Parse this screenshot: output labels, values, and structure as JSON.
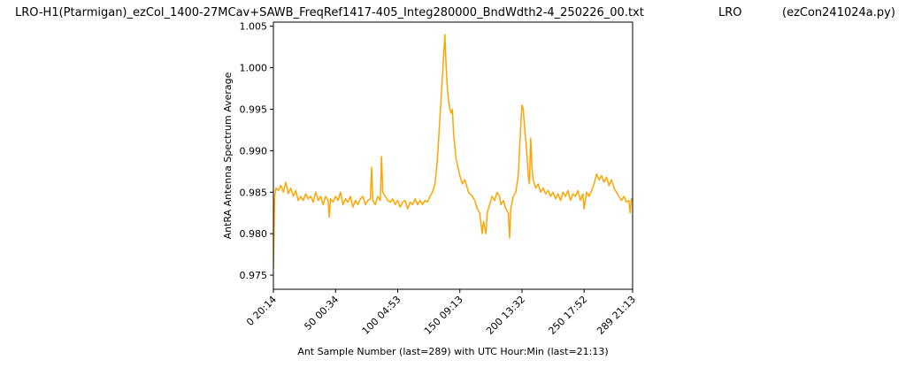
{
  "chart_data": {
    "type": "line",
    "title": "LRO-H1(Ptarmigan)_ezCol_1400-27MCav+SAWB_FreqRef1417-405_Integ280000_BndWdth2-4_250226_00.txt",
    "title_center": "LRO",
    "title_right": "(ezCon241024a.py)",
    "x_label": "Ant Sample Number (last=289) with UTC Hour:Min (last=21:13)",
    "y_label": "AntRA Antenna Spectrum Average",
    "color": "#ffa500",
    "xlim": [
      0,
      289
    ],
    "ylim": [
      0.9733,
      1.0055
    ],
    "xticks": [
      {
        "value": 0,
        "label": "0 20:14"
      },
      {
        "value": 50,
        "label": "50 00:34"
      },
      {
        "value": 100,
        "label": "100 04:53"
      },
      {
        "value": 150,
        "label": "150 09:13"
      },
      {
        "value": 200,
        "label": "200 13:32"
      },
      {
        "value": 250,
        "label": "250 17:52"
      },
      {
        "value": 289,
        "label": "289 21:13"
      }
    ],
    "yticks": [
      0.975,
      {
        "value": 0.98,
        "label": "0.980"
      },
      0.985,
      {
        "value": 0.99,
        "label": "0.990"
      },
      0.995,
      {
        "value": 1.0,
        "label": "1.000"
      },
      1.005
    ],
    "x": [
      0,
      1,
      2,
      4,
      6,
      8,
      10,
      12,
      14,
      16,
      18,
      20,
      22,
      24,
      26,
      28,
      30,
      32,
      34,
      36,
      38,
      40,
      42,
      44,
      45,
      46,
      48,
      50,
      52,
      54,
      56,
      58,
      60,
      62,
      64,
      66,
      68,
      70,
      72,
      74,
      76,
      78,
      79,
      80,
      82,
      84,
      86,
      87,
      88,
      90,
      92,
      94,
      96,
      98,
      100,
      102,
      104,
      106,
      108,
      110,
      112,
      114,
      116,
      118,
      120,
      122,
      124,
      126,
      128,
      130,
      132,
      134,
      136,
      138,
      139,
      140,
      141,
      142,
      143,
      144,
      145,
      147,
      150,
      152,
      154,
      157,
      160,
      162,
      164,
      166,
      168,
      169,
      171,
      172,
      174,
      176,
      178,
      180,
      182,
      183,
      185,
      187,
      189,
      190,
      191,
      193,
      195,
      197,
      199,
      200,
      201,
      202,
      204,
      205,
      206,
      207,
      208,
      209,
      211,
      213,
      215,
      217,
      219,
      221,
      223,
      225,
      227,
      229,
      231,
      233,
      235,
      237,
      239,
      241,
      243,
      245,
      247,
      249,
      250,
      252,
      254,
      256,
      258,
      260,
      262,
      264,
      266,
      268,
      270,
      272,
      274,
      276,
      278,
      280,
      282,
      284,
      286,
      287,
      288,
      289
    ],
    "values": [
      0.9758,
      0.9845,
      0.9855,
      0.9852,
      0.9858,
      0.985,
      0.9862,
      0.9848,
      0.9855,
      0.9845,
      0.9852,
      0.984,
      0.9845,
      0.984,
      0.9848,
      0.9842,
      0.9845,
      0.9838,
      0.985,
      0.984,
      0.9845,
      0.9835,
      0.9845,
      0.984,
      0.982,
      0.9842,
      0.9838,
      0.9845,
      0.984,
      0.985,
      0.9835,
      0.9842,
      0.9838,
      0.9845,
      0.9832,
      0.984,
      0.9835,
      0.9842,
      0.9845,
      0.9835,
      0.984,
      0.9842,
      0.988,
      0.984,
      0.9835,
      0.9845,
      0.984,
      0.9893,
      0.985,
      0.9845,
      0.984,
      0.9838,
      0.9842,
      0.9835,
      0.984,
      0.9832,
      0.9838,
      0.984,
      0.983,
      0.9838,
      0.9835,
      0.9842,
      0.9835,
      0.984,
      0.9835,
      0.984,
      0.9838,
      0.9845,
      0.985,
      0.986,
      0.989,
      0.994,
      0.999,
      1.004,
      1.0,
      0.9975,
      0.996,
      0.995,
      0.9945,
      0.995,
      0.992,
      0.989,
      0.987,
      0.986,
      0.9865,
      0.985,
      0.9845,
      0.984,
      0.983,
      0.9825,
      0.98,
      0.9815,
      0.98,
      0.9825,
      0.9835,
      0.9845,
      0.984,
      0.985,
      0.9845,
      0.9835,
      0.984,
      0.983,
      0.9825,
      0.9795,
      0.983,
      0.9845,
      0.985,
      0.987,
      0.993,
      0.9955,
      0.995,
      0.993,
      0.9895,
      0.987,
      0.986,
      0.9915,
      0.988,
      0.9865,
      0.9855,
      0.986,
      0.985,
      0.9855,
      0.9848,
      0.9852,
      0.9845,
      0.985,
      0.9842,
      0.9848,
      0.984,
      0.985,
      0.9845,
      0.9852,
      0.984,
      0.9848,
      0.9845,
      0.9852,
      0.984,
      0.9848,
      0.983,
      0.985,
      0.9845,
      0.9852,
      0.986,
      0.9872,
      0.9865,
      0.987,
      0.9862,
      0.9868,
      0.9858,
      0.9865,
      0.9855,
      0.985,
      0.9845,
      0.984,
      0.9845,
      0.9838,
      0.984,
      0.9825,
      0.9842,
      0.984
    ]
  }
}
